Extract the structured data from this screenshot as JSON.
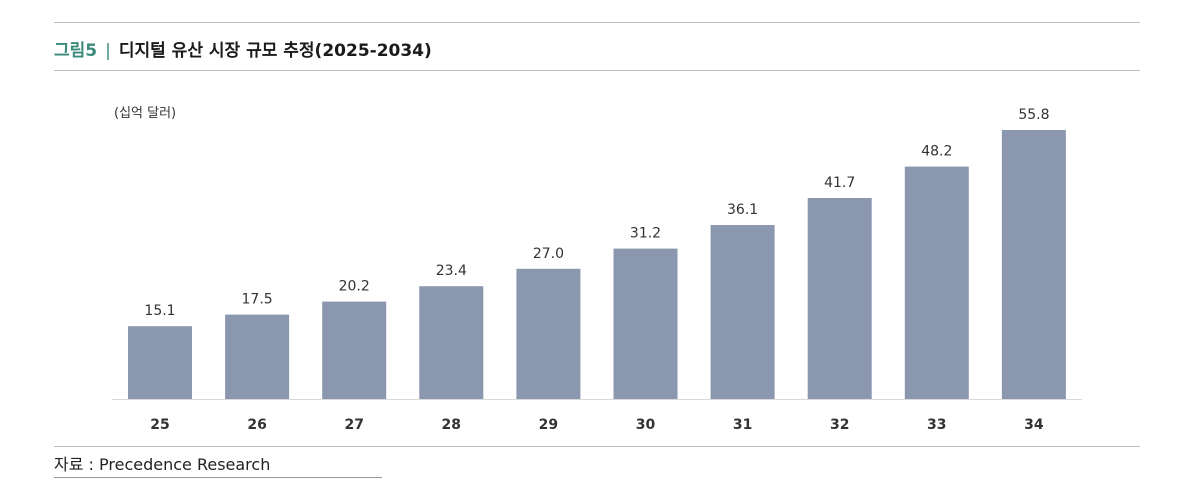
{
  "title": {
    "figure_label": "그림5",
    "separator": "|",
    "text": "디지털 유산 시장 규모 추정(2025-2034)"
  },
  "source": "자료 : Precedence Research",
  "chart_data": {
    "type": "bar",
    "unit_label": "(십억 달러)",
    "categories": [
      "25",
      "26",
      "27",
      "28",
      "29",
      "30",
      "31",
      "32",
      "33",
      "34"
    ],
    "values": [
      15.1,
      17.5,
      20.2,
      23.4,
      27.0,
      31.2,
      36.1,
      41.7,
      48.2,
      55.8
    ],
    "value_labels": [
      "15.1",
      "17.5",
      "20.2",
      "23.4",
      "27.0",
      "31.2",
      "36.1",
      "41.7",
      "48.2",
      "55.8"
    ],
    "ylim": [
      0,
      55.8
    ],
    "grid": false,
    "legend": "none",
    "bar_color": "#8b97ae"
  }
}
